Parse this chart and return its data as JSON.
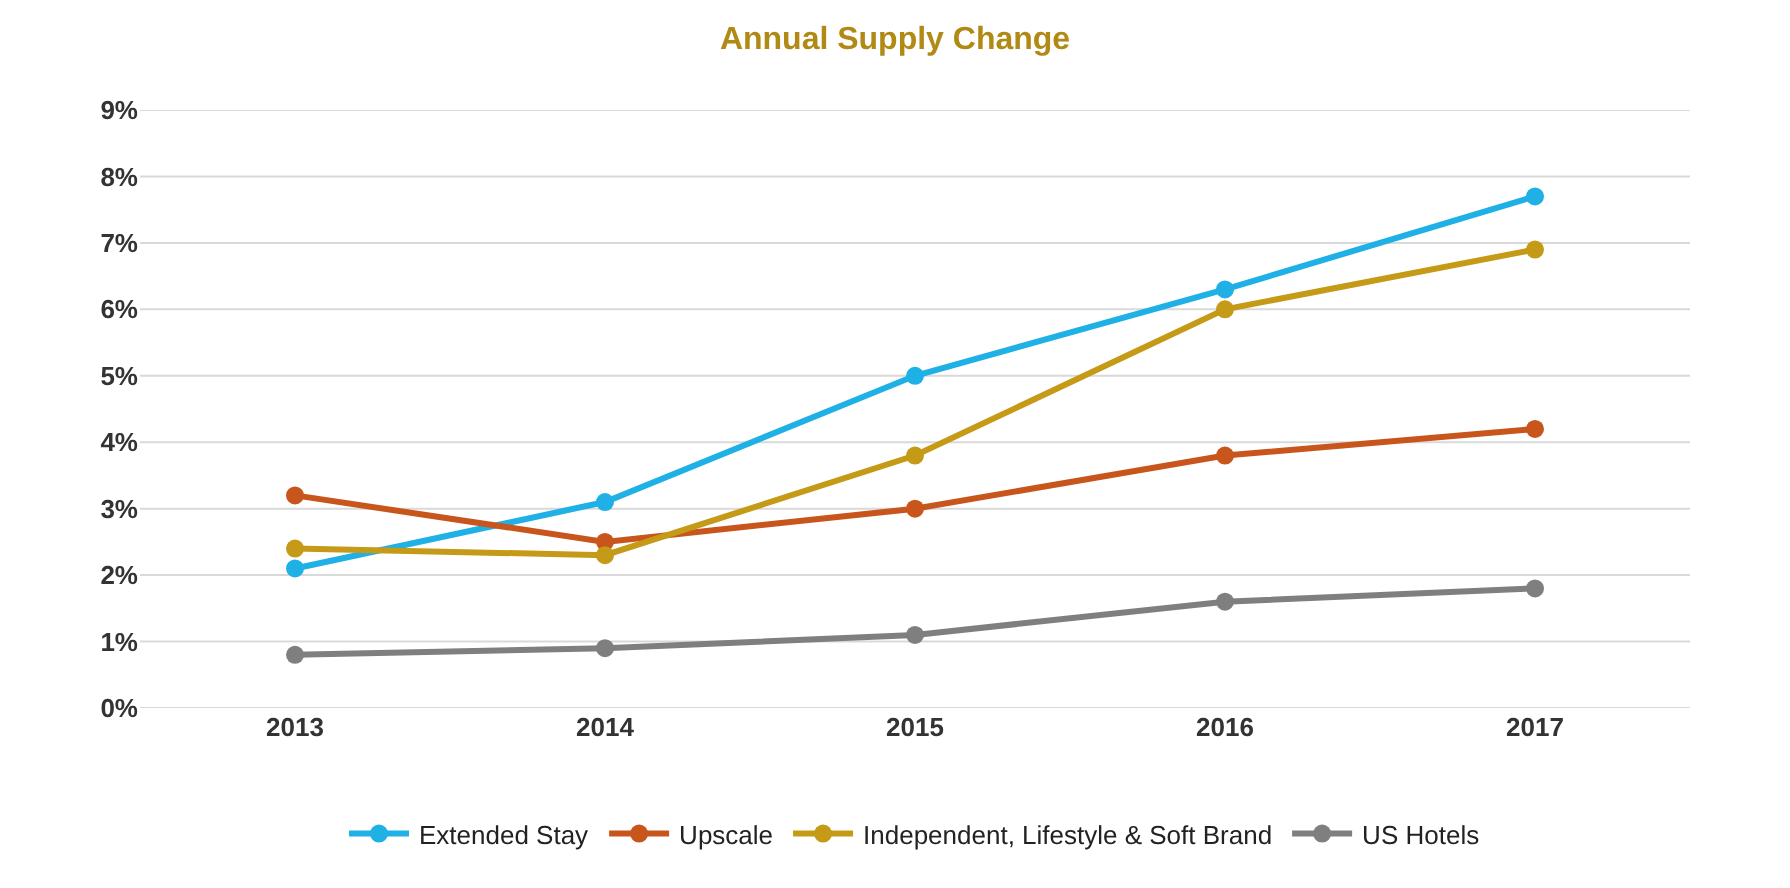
{
  "chart_data": {
    "type": "line",
    "title": "Annual Supply Change",
    "categories": [
      "2013",
      "2014",
      "2015",
      "2016",
      "2017"
    ],
    "series": [
      {
        "name": "Extended Stay",
        "color": "#1fb0e6",
        "values": [
          2.1,
          3.1,
          5.0,
          6.3,
          7.7
        ]
      },
      {
        "name": "Upscale",
        "color": "#c8561c",
        "values": [
          3.2,
          2.5,
          3.0,
          3.8,
          4.2
        ]
      },
      {
        "name": "Independent, Lifestyle & Soft Brand",
        "color": "#c49a17",
        "values": [
          2.4,
          2.3,
          3.8,
          6.0,
          6.9
        ]
      },
      {
        "name": "US Hotels",
        "color": "#7f7f7f",
        "values": [
          0.8,
          0.9,
          1.1,
          1.6,
          1.8
        ]
      }
    ],
    "ylim": [
      0,
      9
    ],
    "yticks": [
      {
        "value": 0,
        "label": "0%"
      },
      {
        "value": 1,
        "label": "1%"
      },
      {
        "value": 2,
        "label": "2%"
      },
      {
        "value": 3,
        "label": "3%"
      },
      {
        "value": 4,
        "label": "4%"
      },
      {
        "value": 5,
        "label": "5%"
      },
      {
        "value": 6,
        "label": "6%"
      },
      {
        "value": 7,
        "label": "7%"
      },
      {
        "value": 8,
        "label": "8%"
      },
      {
        "value": 9,
        "label": "9%"
      }
    ],
    "grid": "y",
    "legend": "bottom",
    "marker": "circle",
    "line_style": "solid"
  }
}
